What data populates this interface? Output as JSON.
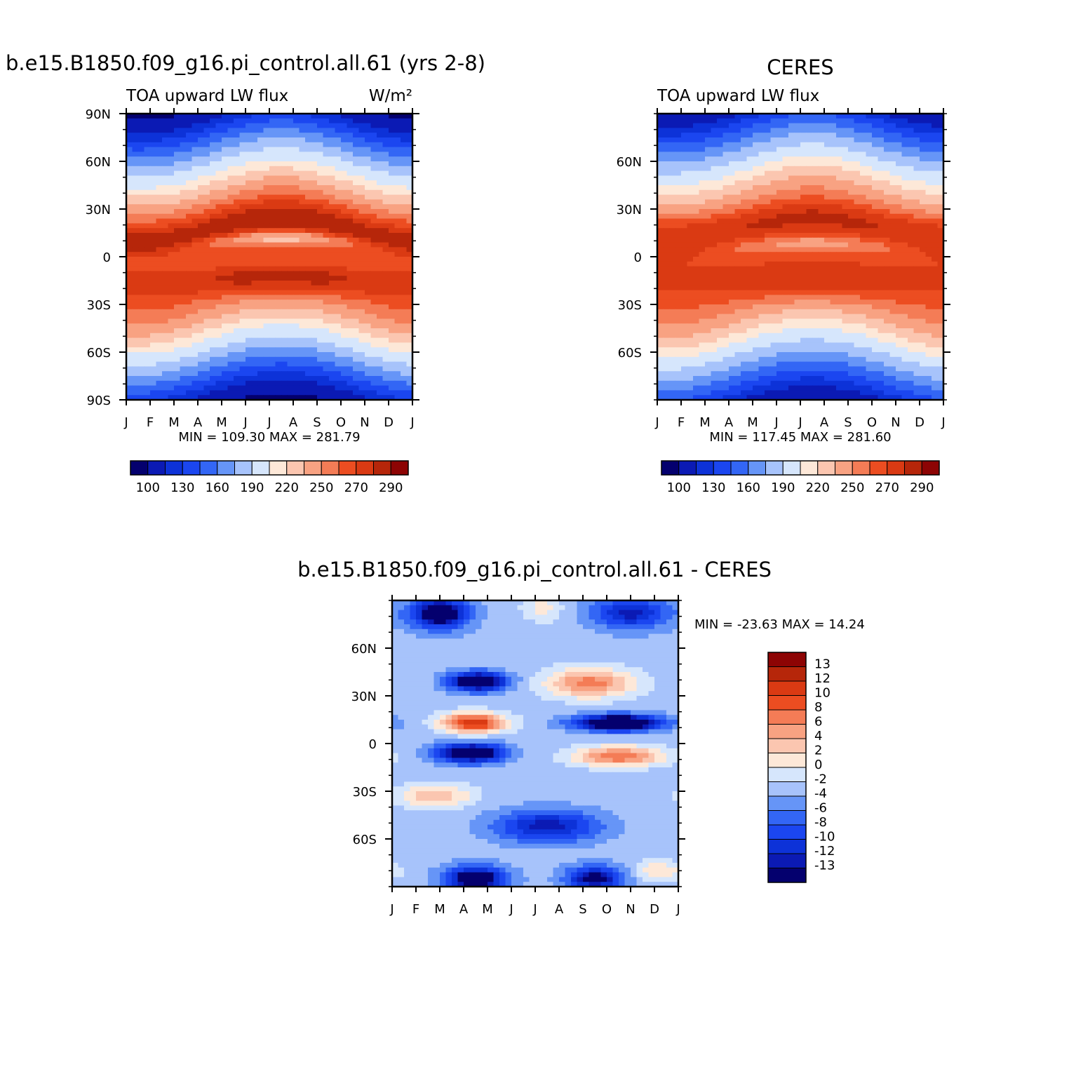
{
  "chart_data": [
    {
      "type": "heatmap",
      "title": "b.e15.B1850.f09_g16.pi_control.all.61 (yrs 2-8)",
      "subtitle_left": "TOA upward LW flux",
      "subtitle_right": "W/m²",
      "x_tick_labels": [
        "J",
        "F",
        "M",
        "A",
        "M",
        "J",
        "J",
        "A",
        "S",
        "O",
        "N",
        "D",
        "J"
      ],
      "y_tick_labels": [
        "90N",
        "60N",
        "30N",
        "0",
        "30S",
        "60S",
        "90S"
      ],
      "y_tick_values": [
        90,
        60,
        30,
        0,
        -30,
        -60,
        -90
      ],
      "ylim": [
        -90,
        90
      ],
      "min_max_text": "MIN = 109.30 MAX = 281.79",
      "stats": {
        "min": 109.3,
        "max": 281.79
      },
      "colorbar_labels": [
        "100",
        "130",
        "160",
        "190",
        "220",
        "250",
        "270",
        "290"
      ],
      "levels": [
        100,
        110,
        120,
        130,
        140,
        150,
        160,
        170,
        180,
        190,
        200,
        210,
        220,
        230,
        240,
        250,
        260,
        270,
        280,
        290
      ]
    },
    {
      "type": "heatmap",
      "title": "CERES",
      "subtitle_left": "TOA upward LW flux",
      "x_tick_labels": [
        "J",
        "F",
        "M",
        "A",
        "M",
        "J",
        "J",
        "A",
        "S",
        "O",
        "N",
        "D",
        "J"
      ],
      "y_tick_labels": [
        "60N",
        "30N",
        "0",
        "30S",
        "60S"
      ],
      "y_tick_values": [
        60,
        30,
        0,
        -30,
        -60
      ],
      "ylim": [
        -90,
        90
      ],
      "min_max_text": "MIN = 117.45 MAX = 281.60",
      "stats": {
        "min": 117.45,
        "max": 281.6
      },
      "colorbar_labels": [
        "100",
        "130",
        "160",
        "190",
        "220",
        "250",
        "270",
        "290"
      ]
    },
    {
      "type": "heatmap",
      "title": "b.e15.B1850.f09_g16.pi_control.all.61 - CERES",
      "x_tick_labels": [
        "J",
        "F",
        "M",
        "A",
        "M",
        "J",
        "J",
        "A",
        "S",
        "O",
        "N",
        "D",
        "J"
      ],
      "y_tick_labels": [
        "60N",
        "30N",
        "0",
        "30S",
        "60S"
      ],
      "y_tick_values": [
        60,
        30,
        0,
        -30,
        -60
      ],
      "ylim": [
        -90,
        90
      ],
      "min_max_text": "MIN = -23.63 MAX =  14.24",
      "stats": {
        "min": -23.63,
        "max": 14.24
      },
      "colorbar_labels": [
        "13",
        "12",
        "10",
        "8",
        "6",
        "4",
        "2",
        "0",
        "-2",
        "-4",
        "-6",
        "-8",
        "-10",
        "-12",
        "-13"
      ],
      "levels": [
        -13,
        -12,
        -10,
        -8,
        -6,
        -4,
        -2,
        0,
        2,
        4,
        6,
        8,
        10,
        12,
        13
      ]
    }
  ],
  "colors": {
    "abs_scale": [
      "#04006e",
      "#0b1ab4",
      "#0d32d8",
      "#1b46f0",
      "#3366f5",
      "#6695f7",
      "#a7c3fb",
      "#d6e6fc",
      "#fde8d8",
      "#fbc6b0",
      "#f8a282",
      "#f47c56",
      "#ec4d21",
      "#da3a13",
      "#b6260a",
      "#8d0404"
    ],
    "diff_scale": [
      "#04006e",
      "#0b1ab4",
      "#0d32d8",
      "#1b46f0",
      "#3366f5",
      "#6695f7",
      "#a7c3fb",
      "#d6e6fc",
      "#fde8d8",
      "#fbc6b0",
      "#f8a282",
      "#f47c56",
      "#ec4d21",
      "#da3a13",
      "#b6260a",
      "#8d0404"
    ]
  }
}
